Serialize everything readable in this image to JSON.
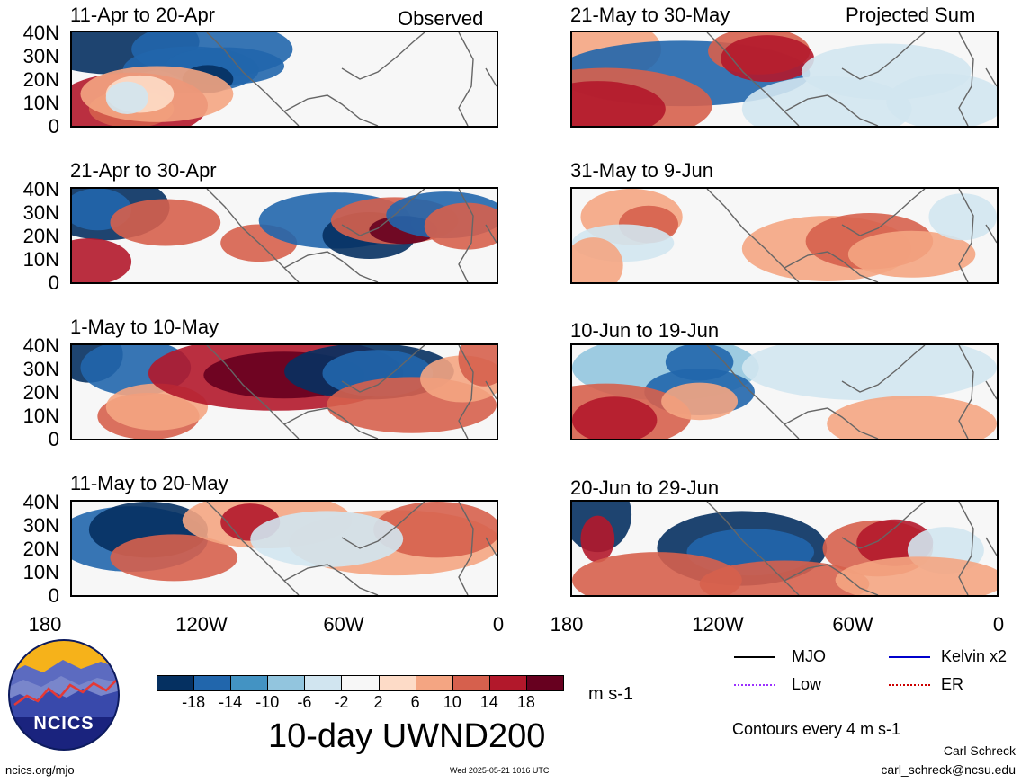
{
  "panels": [
    {
      "title": "11-Apr to 20-Apr",
      "note": "Observed"
    },
    {
      "title": "21-Apr to 30-Apr",
      "note": ""
    },
    {
      "title": "1-May to 10-May",
      "note": ""
    },
    {
      "title": "11-May to 20-May",
      "note": ""
    },
    {
      "title": "21-May to 30-May",
      "note": "Projected Sum"
    },
    {
      "title": "31-May to 9-Jun",
      "note": ""
    },
    {
      "title": "10-Jun to 19-Jun",
      "note": ""
    },
    {
      "title": "20-Jun to 29-Jun",
      "note": ""
    }
  ],
  "lat_labels": [
    "40N",
    "30N",
    "20N",
    "10N",
    "0"
  ],
  "lon_labels": [
    "180",
    "120W",
    "60W",
    "0"
  ],
  "colorbar": {
    "colors": [
      "#053061",
      "#2166ac",
      "#4393c3",
      "#92c5de",
      "#d1e5f0",
      "#f7f7f7",
      "#fddbc7",
      "#f4a582",
      "#d6604d",
      "#b2182b",
      "#67001f"
    ],
    "labels": [
      "-18",
      "-14",
      "-10",
      "-6",
      "-2",
      "2",
      "6",
      "10",
      "14",
      "18"
    ],
    "units": "m s-1"
  },
  "main_title": "10-day UWND200",
  "legend": [
    {
      "label": "MJO",
      "color": "#000000"
    },
    {
      "label": "Kelvin x2",
      "color": "#0000cc"
    },
    {
      "label": "Low",
      "color": "#9b30ff"
    },
    {
      "label": "ER",
      "color": "#cc0000"
    }
  ],
  "contours_note": "Contours every 4 m s-1",
  "logo_text": "NCICS",
  "url": "ncics.org/mjo",
  "timestamp": "Wed 2025-05-21 1016 UTC",
  "author": "Carl Schreck",
  "email": "carl_schreck@ncsu.edu"
}
